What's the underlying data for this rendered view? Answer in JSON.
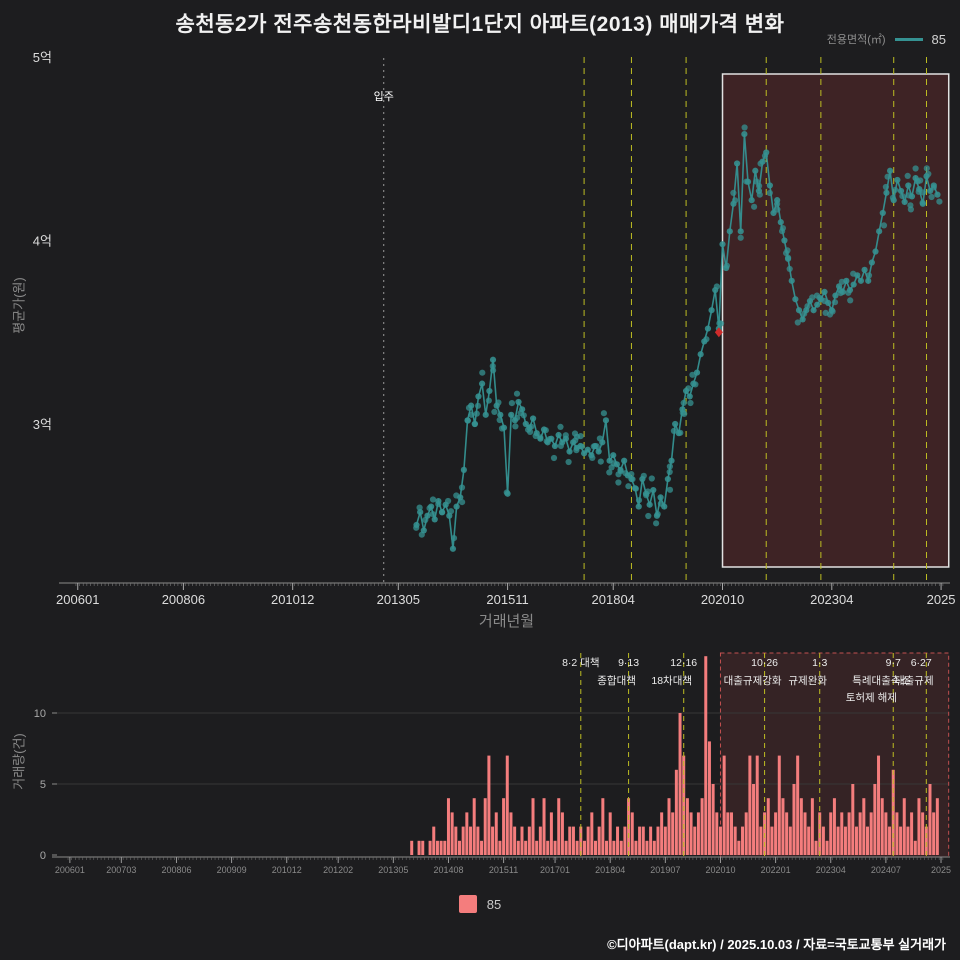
{
  "page": {
    "title": "송천동2가 전주송천동한라비발디1단지 아파트(2013) 매매가격 변화",
    "footer": "©디아파트(dapt.kr) / 2025.10.03 / 자료=국토교통부 실거래가",
    "background": "#1d1d1f"
  },
  "price_chart": {
    "ylabel": "평균가(원)",
    "xlabel": "거래년월",
    "legend_label": "전용면적(㎡)",
    "legend_series": "85",
    "series_color": "#359292",
    "policy_line_color": "#bdbd22",
    "yticks": [
      {
        "v": 3,
        "label": "3억"
      },
      {
        "v": 4,
        "label": "4억"
      },
      {
        "v": 5,
        "label": "5억"
      }
    ],
    "xticks": [
      {
        "ym": "200601",
        "label": "200601"
      },
      {
        "ym": "200806",
        "label": "200806"
      },
      {
        "ym": "201012",
        "label": "201012"
      },
      {
        "ym": "201305",
        "label": "201305"
      },
      {
        "ym": "201511",
        "label": "201511"
      },
      {
        "ym": "201804",
        "label": "201804"
      },
      {
        "ym": "202010",
        "label": "202010"
      },
      {
        "ym": "202304",
        "label": "202304"
      },
      {
        "ym": "202510",
        "label": "2025"
      }
    ]
  },
  "volume_chart": {
    "ylabel": "거래량(건)",
    "legend_series": "85",
    "bar_color": "#f47d7d",
    "yticks": [
      {
        "v": 0,
        "label": "0"
      },
      {
        "v": 5,
        "label": "5"
      },
      {
        "v": 10,
        "label": "10"
      }
    ],
    "xticks": [
      {
        "ym": "200601",
        "label": "200601"
      },
      {
        "ym": "200703",
        "label": "200703"
      },
      {
        "ym": "200806",
        "label": "200806"
      },
      {
        "ym": "200909",
        "label": "200909"
      },
      {
        "ym": "201012",
        "label": "201012"
      },
      {
        "ym": "201202",
        "label": "201202"
      },
      {
        "ym": "201305",
        "label": "201305"
      },
      {
        "ym": "201408",
        "label": "201408"
      },
      {
        "ym": "201511",
        "label": "201511"
      },
      {
        "ym": "201701",
        "label": "201701"
      },
      {
        "ym": "201804",
        "label": "201804"
      },
      {
        "ym": "201907",
        "label": "201907"
      },
      {
        "ym": "202010",
        "label": "202010"
      },
      {
        "ym": "202201",
        "label": "202201"
      },
      {
        "ym": "202304",
        "label": "202304"
      },
      {
        "ym": "202407",
        "label": "202407"
      },
      {
        "ym": "202510",
        "label": "2025"
      }
    ]
  },
  "chart_data": {
    "type": "line+bar",
    "title": "송천동2가 전주송천동한라비발디1단지 아파트(2013) 매매가격 변화",
    "price_unit": "억원",
    "volume_unit": "건",
    "price_axis_range_eok": [
      2.1,
      5.1
    ],
    "volume_axis_range": [
      0,
      14
    ],
    "x_ym": [
      "201310",
      "201311",
      "201312",
      "201401",
      "201402",
      "201403",
      "201404",
      "201405",
      "201406",
      "201407",
      "201408",
      "201409",
      "201410",
      "201411",
      "201412",
      "201501",
      "201502",
      "201503",
      "201504",
      "201505",
      "201506",
      "201507",
      "201508",
      "201509",
      "201510",
      "201511",
      "201512",
      "201601",
      "201602",
      "201603",
      "201604",
      "201605",
      "201606",
      "201607",
      "201608",
      "201609",
      "201610",
      "201611",
      "201612",
      "201701",
      "201702",
      "201703",
      "201704",
      "201705",
      "201706",
      "201707",
      "201708",
      "201709",
      "201710",
      "201711",
      "201712",
      "201801",
      "201802",
      "201803",
      "201804",
      "201805",
      "201806",
      "201807",
      "201808",
      "201809",
      "201810",
      "201811",
      "201812",
      "201901",
      "201902",
      "201903",
      "201904",
      "201905",
      "201906",
      "201907",
      "201908",
      "201909",
      "201910",
      "201911",
      "201912",
      "202001",
      "202002",
      "202003",
      "202004",
      "202005",
      "202006",
      "202007",
      "202008",
      "202009",
      "202010",
      "202011",
      "202012",
      "202101",
      "202102",
      "202103",
      "202104",
      "202105",
      "202106",
      "202107",
      "202108",
      "202109",
      "202110",
      "202111",
      "202112",
      "202201",
      "202202",
      "202203",
      "202204",
      "202205",
      "202206",
      "202207",
      "202208",
      "202209",
      "202210",
      "202211",
      "202212",
      "202301",
      "202302",
      "202303",
      "202304",
      "202305",
      "202306",
      "202307",
      "202308",
      "202309",
      "202310",
      "202311",
      "202312",
      "202401",
      "202402",
      "202403",
      "202404",
      "202405",
      "202406",
      "202407",
      "202408",
      "202409",
      "202410",
      "202411",
      "202412",
      "202501",
      "202502",
      "202503",
      "202504",
      "202505",
      "202506",
      "202507",
      "202508",
      "202509"
    ],
    "series": [
      {
        "name": "평균가(원) 전용 85㎡",
        "type": "scatter+line",
        "color": "#359292",
        "values": [
          2.45,
          2.52,
          2.42,
          2.5,
          2.55,
          2.48,
          2.58,
          2.52,
          2.56,
          2.5,
          2.32,
          2.55,
          2.6,
          2.75,
          3.02,
          3.1,
          3.0,
          3.15,
          3.22,
          3.05,
          3.18,
          3.35,
          3.1,
          3.05,
          2.98,
          2.62,
          3.05,
          3.02,
          3.12,
          3.08,
          3.0,
          2.98,
          3.03,
          2.95,
          2.92,
          2.97,
          2.9,
          2.92,
          2.88,
          2.94,
          2.9,
          2.92,
          2.85,
          2.9,
          2.87,
          2.88,
          2.84,
          2.86,
          2.83,
          2.88,
          2.85,
          2.9,
          3.02,
          2.8,
          2.83,
          2.78,
          2.75,
          2.8,
          2.72,
          2.7,
          2.65,
          2.55,
          2.7,
          2.62,
          2.56,
          2.64,
          2.5,
          2.6,
          2.55,
          2.7,
          2.8,
          3.0,
          2.95,
          3.08,
          3.18,
          3.15,
          3.22,
          3.28,
          3.38,
          3.45,
          3.52,
          3.62,
          3.73,
          3.52,
          3.98,
          3.85,
          4.05,
          4.2,
          4.42,
          4.05,
          4.58,
          4.32,
          4.22,
          4.38,
          4.27,
          4.43,
          4.48,
          4.3,
          4.15,
          4.22,
          4.1,
          4.0,
          3.9,
          3.78,
          3.68,
          3.62,
          3.57,
          3.62,
          3.67,
          3.62,
          3.65,
          3.68,
          3.72,
          3.66,
          3.62,
          3.7,
          3.75,
          3.72,
          3.78,
          3.73,
          3.76,
          3.81,
          3.78,
          3.84,
          3.78,
          3.88,
          3.94,
          4.05,
          4.15,
          4.26,
          4.38,
          4.22,
          4.33,
          4.27,
          4.21,
          4.3,
          4.24,
          4.34,
          4.28,
          4.2,
          4.35,
          4.27,
          4.3,
          4.25
        ]
      },
      {
        "name": "거래량(건) 전용 85㎡",
        "type": "bar",
        "color": "#f47d7d",
        "values": [
          1,
          0,
          1,
          1,
          0,
          1,
          2,
          1,
          1,
          1,
          4,
          3,
          2,
          1,
          2,
          3,
          2,
          4,
          2,
          1,
          4,
          7,
          2,
          3,
          1,
          4,
          7,
          3,
          2,
          1,
          2,
          1,
          2,
          4,
          1,
          2,
          4,
          1,
          3,
          1,
          4,
          3,
          1,
          2,
          2,
          1,
          2,
          1,
          2,
          3,
          1,
          2,
          4,
          1,
          3,
          1,
          2,
          1,
          2,
          4,
          3,
          1,
          2,
          2,
          1,
          2,
          1,
          2,
          3,
          2,
          4,
          3,
          6,
          10,
          7,
          4,
          3,
          2,
          3,
          4,
          14,
          8,
          5,
          3,
          2,
          7,
          3,
          3,
          2,
          1,
          2,
          3,
          7,
          5,
          7,
          2,
          3,
          4,
          2,
          3,
          7,
          4,
          3,
          2,
          5,
          7,
          4,
          3,
          2,
          4,
          1,
          3,
          2,
          1,
          3,
          4,
          2,
          3,
          2,
          3,
          5,
          2,
          3,
          4,
          2,
          3,
          5,
          7,
          4,
          3,
          2,
          6,
          3,
          2,
          4,
          2,
          3,
          1,
          4,
          3,
          2,
          5,
          3,
          4
        ]
      }
    ],
    "move_in": {
      "ym": "201301",
      "label": "입주"
    },
    "marker": {
      "ym": "202009",
      "value": 3.5,
      "color": "#cf2b2b"
    },
    "highlight": {
      "start_ym": "202010",
      "end_ym": "202511"
    },
    "policies": [
      {
        "ym": "201708",
        "rows": [
          "8·2 대책"
        ]
      },
      {
        "ym": "201809",
        "rows": [
          "9·13",
          "종합대책"
        ]
      },
      {
        "ym": "201912",
        "rows": [
          "12·16",
          "18차대책"
        ]
      },
      {
        "ym": "202110",
        "rows": [
          "10·26",
          "대출규제강화"
        ]
      },
      {
        "ym": "202301",
        "rows": [
          "1·3",
          "규제완화"
        ]
      },
      {
        "ym": "202409",
        "rows": [
          "9·7",
          "특례대출축소"
        ]
      },
      {
        "ym": "202506",
        "rows": [
          "6·27",
          "대출규제",
          "토허제 해제"
        ]
      }
    ]
  }
}
